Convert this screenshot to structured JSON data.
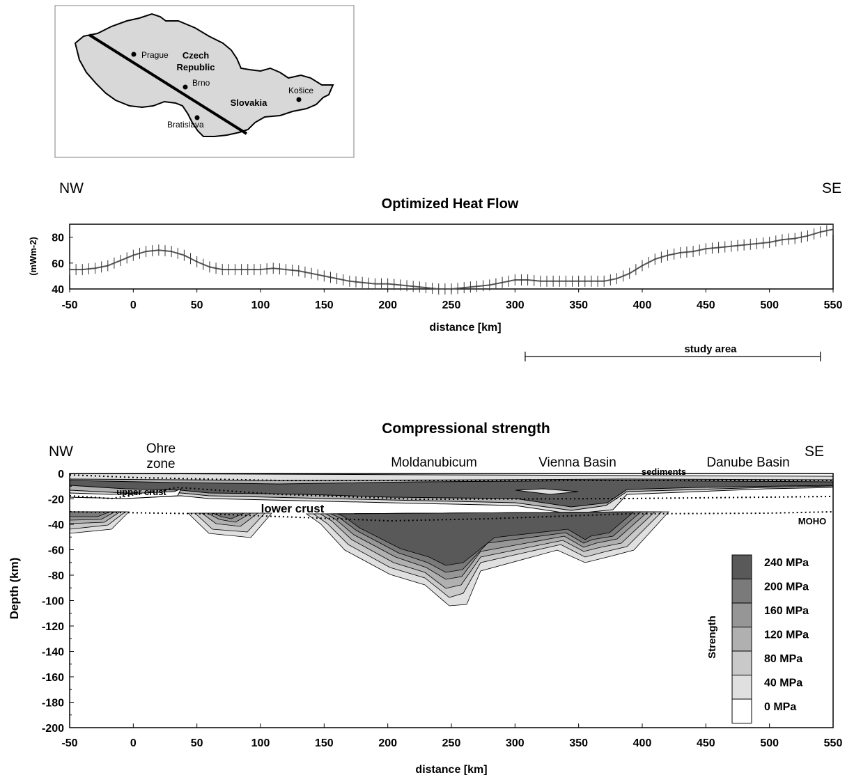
{
  "map": {
    "cities": [
      {
        "name": "Prague"
      },
      {
        "name": "Brno"
      },
      {
        "name": "Košice"
      },
      {
        "name": "Bratislava"
      }
    ],
    "country_labels": [
      "Czech",
      "Republic",
      "Slovakia"
    ]
  },
  "chart_data": [
    {
      "type": "line",
      "title": "Optimized Heat Flow",
      "corner_left": "NW",
      "corner_right": "SE",
      "xlabel": "distance [km]",
      "ylabel": "(mWm-2)",
      "xlim": [
        -50,
        550
      ],
      "ylim": [
        40,
        90
      ],
      "xticks": [
        "-50",
        "0",
        "50",
        "100",
        "150",
        "200",
        "250",
        "300",
        "350",
        "400",
        "450",
        "500",
        "550"
      ],
      "yticks": [
        "40",
        "60",
        "80"
      ],
      "error_bars": true,
      "series": [
        {
          "x": [
            -50,
            -40,
            -30,
            -20,
            -10,
            0,
            10,
            20,
            30,
            40,
            50,
            60,
            70,
            80,
            90,
            100,
            110,
            120,
            130,
            140,
            150,
            160,
            170,
            180,
            190,
            200,
            210,
            220,
            230,
            240,
            250,
            260,
            270,
            280,
            290,
            300,
            310,
            320,
            330,
            340,
            350,
            360,
            370,
            380,
            390,
            400,
            410,
            420,
            430,
            440,
            450,
            460,
            470,
            480,
            490,
            500,
            510,
            520,
            530,
            540,
            550
          ],
          "y": [
            55,
            55,
            56,
            58,
            62,
            66,
            69,
            70,
            69,
            66,
            61,
            57,
            55,
            55,
            55,
            55,
            56,
            55,
            54,
            52,
            50,
            48,
            46,
            45,
            44,
            44,
            43,
            42,
            41,
            40,
            40,
            41,
            42,
            43,
            45,
            47,
            47,
            46,
            46,
            46,
            46,
            46,
            46,
            48,
            52,
            58,
            63,
            66,
            68,
            69,
            71,
            72,
            73,
            74,
            75,
            76,
            78,
            79,
            81,
            84,
            86
          ]
        }
      ],
      "annotation": "study area",
      "study_area_range": [
        308,
        540
      ]
    },
    {
      "type": "area",
      "title": "Compressional strength",
      "corner_left": "NW",
      "corner_right": "SE",
      "xlabel": "distance [km]",
      "ylabel": "Depth (km)",
      "xlim": [
        -50,
        550
      ],
      "ylim": [
        -200,
        0
      ],
      "xticks": [
        "-50",
        "0",
        "50",
        "100",
        "150",
        "200",
        "250",
        "300",
        "350",
        "400",
        "450",
        "500",
        "550"
      ],
      "yticks": [
        "0",
        "-20",
        "-40",
        "-60",
        "-80",
        "-100",
        "-120",
        "-140",
        "-160",
        "-180",
        "-200"
      ],
      "legend_title": "Strength",
      "legend_position": "lower-right",
      "legend": [
        {
          "label": "240 MPa",
          "color": "#595959"
        },
        {
          "label": "200 MPa",
          "color": "#7a7a7a"
        },
        {
          "label": "160 MPa",
          "color": "#969696"
        },
        {
          "label": "120 MPa",
          "color": "#b0b0b0"
        },
        {
          "label": "80 MPa",
          "color": "#c9c9c9"
        },
        {
          "label": "40 MPa",
          "color": "#e0e0e0"
        },
        {
          "label": "0 MPa",
          "color": "#ffffff"
        }
      ],
      "annotations": [
        "Ohre",
        "zone",
        "Moldanubicum",
        "Vienna Basin",
        "sediments",
        "Danube Basin",
        "upper crust",
        "lower crust",
        "MOHO"
      ],
      "moho_depth_km": [
        [
          -50,
          -30
        ],
        [
          100,
          -36
        ],
        [
          200,
          -37
        ],
        [
          300,
          -34
        ],
        [
          400,
          -32
        ],
        [
          550,
          -30
        ]
      ]
    }
  ]
}
